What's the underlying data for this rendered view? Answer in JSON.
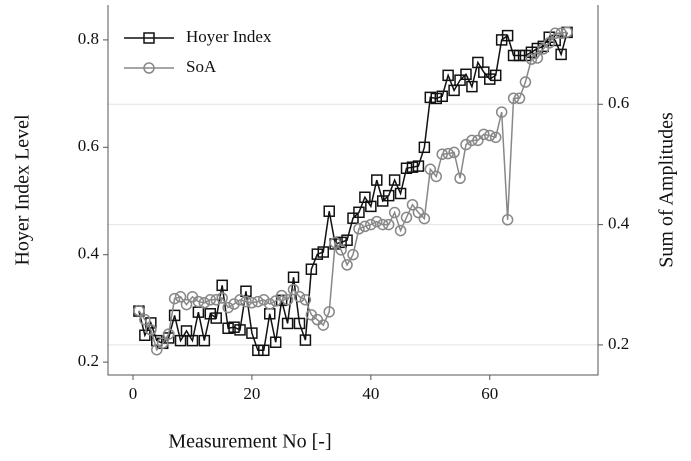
{
  "chart_data": {
    "type": "line",
    "x_label": "Measurement No [-]",
    "y_label": "Hoyer Index Level",
    "y2_label": "Sum of Amplitudes",
    "x": [
      1,
      2,
      3,
      4,
      5,
      6,
      7,
      8,
      9,
      10,
      11,
      12,
      13,
      14,
      15,
      16,
      17,
      18,
      19,
      20,
      21,
      22,
      23,
      24,
      25,
      26,
      27,
      28,
      29,
      30,
      31,
      32,
      33,
      34,
      35,
      36,
      37,
      38,
      39,
      40,
      41,
      42,
      43,
      44,
      45,
      46,
      47,
      48,
      49,
      50,
      51,
      52,
      53,
      54,
      55,
      56,
      57,
      58,
      59,
      60,
      61,
      62,
      63,
      64,
      65,
      66,
      67,
      68,
      69,
      70,
      71,
      72,
      73
    ],
    "series": [
      {
        "name": "Hoyer Index",
        "color": "#111111",
        "marker": "square",
        "values": [
          0.295,
          0.25,
          0.273,
          0.24,
          0.235,
          0.245,
          0.287,
          0.24,
          0.258,
          0.24,
          0.293,
          0.24,
          0.29,
          0.282,
          0.343,
          0.263,
          0.265,
          0.26,
          0.332,
          0.254,
          0.222,
          0.222,
          0.29,
          0.237,
          0.315,
          0.272,
          0.358,
          0.272,
          0.241,
          0.373,
          0.401,
          0.405,
          0.481,
          0.42,
          0.423,
          0.427,
          0.468,
          0.479,
          0.507,
          0.49,
          0.539,
          0.5,
          0.51,
          0.539,
          0.514,
          0.561,
          0.563,
          0.565,
          0.6,
          0.693,
          0.691,
          0.695,
          0.734,
          0.706,
          0.725,
          0.736,
          0.713,
          0.758,
          0.74,
          0.727,
          0.734,
          0.8,
          0.808,
          0.771,
          0.771,
          0.771,
          0.777,
          0.784,
          0.788,
          0.805,
          0.799,
          0.773,
          0.814
        ]
      },
      {
        "name": "SoA",
        "color": "#888888",
        "marker": "circle",
        "axis": "y2",
        "values": [
          0.257,
          0.242,
          0.225,
          0.192,
          0.203,
          0.218,
          0.277,
          0.28,
          0.267,
          0.28,
          0.272,
          0.27,
          0.275,
          0.275,
          0.278,
          0.262,
          0.268,
          0.275,
          0.272,
          0.27,
          0.272,
          0.275,
          0.268,
          0.273,
          0.282,
          0.275,
          0.292,
          0.28,
          0.275,
          0.25,
          0.242,
          0.233,
          0.255,
          0.37,
          0.358,
          0.333,
          0.35,
          0.393,
          0.397,
          0.4,
          0.405,
          0.4,
          0.4,
          0.42,
          0.39,
          0.412,
          0.433,
          0.42,
          0.41,
          0.492,
          0.48,
          0.517,
          0.518,
          0.52,
          0.477,
          0.533,
          0.54,
          0.54,
          0.55,
          0.548,
          0.545,
          0.587,
          0.408,
          0.61,
          0.61,
          0.637,
          0.675,
          0.677,
          0.692,
          0.702,
          0.718,
          0.718,
          0.72
        ]
      }
    ],
    "xlim": [
      -4.2,
      78.2
    ],
    "xticks": [
      0,
      20,
      40,
      60
    ],
    "ylim": [
      0.176,
      0.865
    ],
    "yticks": [
      0.2,
      0.4,
      0.6,
      0.8
    ],
    "y2lim": [
      0.15,
      0.765
    ],
    "y2ticks": [
      0.2,
      0.4,
      0.6
    ],
    "grid": true,
    "legend": "upper left"
  }
}
